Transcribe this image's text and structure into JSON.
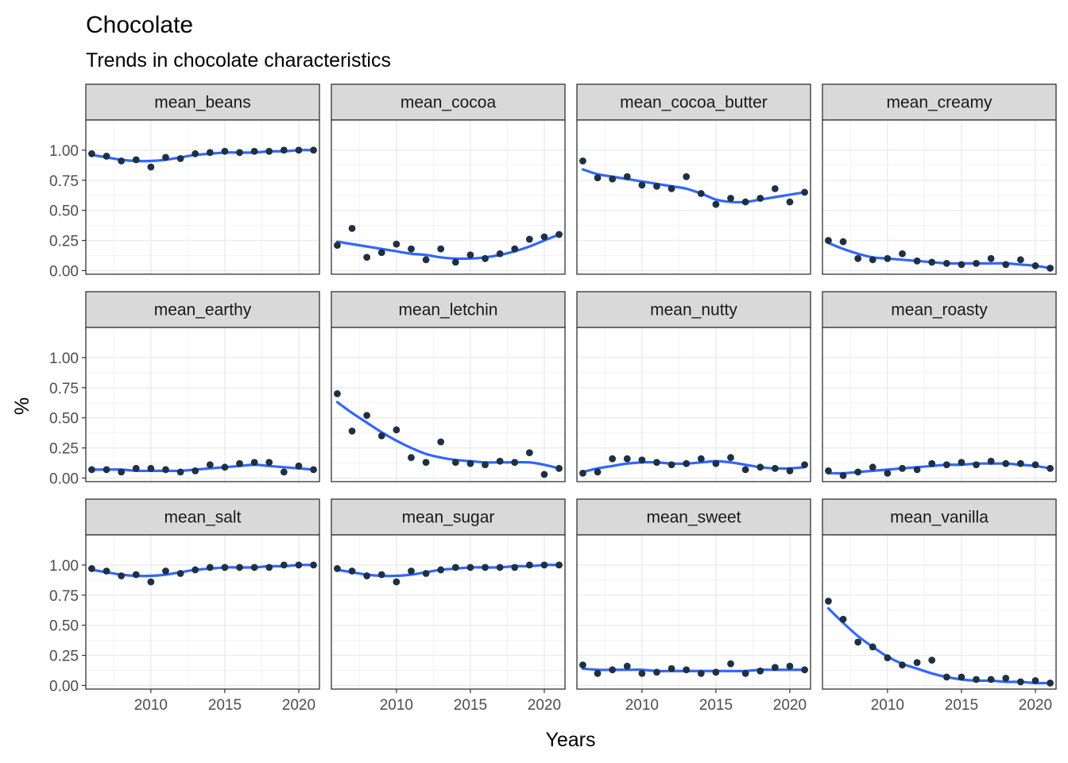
{
  "chart_data": {
    "type": "scatter",
    "title": "Chocolate",
    "subtitle": "Trends in chocolate characteristics",
    "xlabel": "Years",
    "ylabel": "%",
    "xlim": [
      2005.6,
      2021.4
    ],
    "ylim": [
      -0.03,
      1.25
    ],
    "x_ticks": [
      2010,
      2015,
      2020
    ],
    "y_ticks": [
      0.0,
      0.25,
      0.5,
      0.75,
      1.0
    ],
    "y_tick_labels": [
      "0.00",
      "0.25",
      "0.50",
      "0.75",
      "1.00"
    ],
    "grid": true,
    "theme": "bw",
    "colors": {
      "points": "#1f3044",
      "smooth": "#3366ff",
      "strip": "#d9d9d9",
      "grid": "#ebebeb",
      "panel_border": "#333333"
    },
    "x": [
      2006,
      2007,
      2008,
      2009,
      2010,
      2011,
      2012,
      2013,
      2014,
      2015,
      2016,
      2017,
      2018,
      2019,
      2020,
      2021
    ],
    "panels": [
      {
        "name": "mean_beans",
        "points": [
          0.97,
          0.95,
          0.91,
          0.92,
          0.86,
          0.94,
          0.93,
          0.97,
          0.98,
          0.99,
          0.98,
          0.99,
          0.99,
          1.0,
          1.0,
          1.0
        ],
        "smooth": [
          0.96,
          0.94,
          0.92,
          0.91,
          0.91,
          0.92,
          0.94,
          0.96,
          0.97,
          0.98,
          0.98,
          0.98,
          0.99,
          0.99,
          1.0,
          1.0
        ]
      },
      {
        "name": "mean_cocoa",
        "points": [
          0.21,
          0.35,
          0.11,
          0.15,
          0.22,
          0.18,
          0.09,
          0.18,
          0.07,
          0.13,
          0.1,
          0.14,
          0.18,
          0.26,
          0.28,
          0.3
        ],
        "smooth": [
          0.24,
          0.22,
          0.2,
          0.18,
          0.16,
          0.14,
          0.13,
          0.11,
          0.1,
          0.1,
          0.11,
          0.13,
          0.16,
          0.2,
          0.25,
          0.3
        ]
      },
      {
        "name": "mean_cocoa_butter",
        "points": [
          0.91,
          0.77,
          0.76,
          0.78,
          0.71,
          0.7,
          0.68,
          0.78,
          0.64,
          0.55,
          0.6,
          0.57,
          0.6,
          0.68,
          0.57,
          0.65
        ],
        "smooth": [
          0.84,
          0.8,
          0.78,
          0.76,
          0.74,
          0.72,
          0.7,
          0.68,
          0.64,
          0.59,
          0.57,
          0.57,
          0.59,
          0.61,
          0.63,
          0.65
        ]
      },
      {
        "name": "mean_creamy",
        "points": [
          0.25,
          0.24,
          0.1,
          0.09,
          0.1,
          0.14,
          0.08,
          0.07,
          0.06,
          0.05,
          0.06,
          0.1,
          0.05,
          0.09,
          0.04,
          0.02
        ],
        "smooth": [
          0.23,
          0.18,
          0.14,
          0.11,
          0.1,
          0.09,
          0.08,
          0.07,
          0.06,
          0.06,
          0.06,
          0.06,
          0.06,
          0.05,
          0.04,
          0.02
        ]
      },
      {
        "name": "mean_earthy",
        "points": [
          0.07,
          0.07,
          0.05,
          0.08,
          0.08,
          0.07,
          0.05,
          0.06,
          0.11,
          0.09,
          0.12,
          0.13,
          0.13,
          0.05,
          0.1,
          0.07
        ],
        "smooth": [
          0.07,
          0.07,
          0.07,
          0.06,
          0.06,
          0.06,
          0.06,
          0.07,
          0.08,
          0.09,
          0.1,
          0.11,
          0.1,
          0.09,
          0.08,
          0.07
        ]
      },
      {
        "name": "mean_letchin",
        "points": [
          0.7,
          0.39,
          0.52,
          0.35,
          0.4,
          0.17,
          0.13,
          0.3,
          0.13,
          0.12,
          0.11,
          0.14,
          0.13,
          0.21,
          0.03,
          0.08
        ],
        "smooth": [
          0.63,
          0.54,
          0.46,
          0.38,
          0.31,
          0.25,
          0.2,
          0.17,
          0.15,
          0.14,
          0.13,
          0.13,
          0.13,
          0.13,
          0.11,
          0.08
        ]
      },
      {
        "name": "mean_nutty",
        "points": [
          0.04,
          0.05,
          0.16,
          0.16,
          0.15,
          0.13,
          0.11,
          0.12,
          0.16,
          0.12,
          0.17,
          0.07,
          0.09,
          0.08,
          0.06,
          0.11
        ],
        "smooth": [
          0.05,
          0.08,
          0.1,
          0.12,
          0.13,
          0.13,
          0.12,
          0.12,
          0.13,
          0.14,
          0.13,
          0.11,
          0.09,
          0.08,
          0.08,
          0.09
        ]
      },
      {
        "name": "mean_roasty",
        "points": [
          0.06,
          0.02,
          0.05,
          0.09,
          0.04,
          0.08,
          0.07,
          0.12,
          0.11,
          0.13,
          0.11,
          0.14,
          0.12,
          0.12,
          0.11,
          0.08
        ],
        "smooth": [
          0.04,
          0.04,
          0.05,
          0.06,
          0.07,
          0.08,
          0.09,
          0.1,
          0.11,
          0.11,
          0.12,
          0.12,
          0.12,
          0.11,
          0.1,
          0.08
        ]
      },
      {
        "name": "mean_salt",
        "points": [
          0.97,
          0.95,
          0.91,
          0.92,
          0.86,
          0.95,
          0.93,
          0.96,
          0.98,
          0.98,
          0.98,
          0.98,
          0.98,
          1.0,
          1.0,
          1.0
        ],
        "smooth": [
          0.96,
          0.94,
          0.92,
          0.91,
          0.91,
          0.92,
          0.94,
          0.96,
          0.97,
          0.98,
          0.98,
          0.98,
          0.99,
          0.99,
          1.0,
          1.0
        ]
      },
      {
        "name": "mean_sugar",
        "points": [
          0.97,
          0.95,
          0.91,
          0.92,
          0.86,
          0.95,
          0.93,
          0.96,
          0.98,
          0.98,
          0.98,
          0.98,
          0.98,
          1.0,
          1.0,
          1.0
        ],
        "smooth": [
          0.96,
          0.94,
          0.92,
          0.91,
          0.91,
          0.92,
          0.94,
          0.96,
          0.97,
          0.98,
          0.98,
          0.98,
          0.99,
          0.99,
          1.0,
          1.0
        ]
      },
      {
        "name": "mean_sweet",
        "points": [
          0.17,
          0.1,
          0.13,
          0.16,
          0.1,
          0.11,
          0.14,
          0.13,
          0.1,
          0.11,
          0.18,
          0.1,
          0.12,
          0.15,
          0.16,
          0.13
        ],
        "smooth": [
          0.14,
          0.13,
          0.13,
          0.13,
          0.13,
          0.12,
          0.12,
          0.12,
          0.12,
          0.12,
          0.12,
          0.12,
          0.13,
          0.13,
          0.13,
          0.13
        ]
      },
      {
        "name": "mean_vanilla",
        "points": [
          0.7,
          0.55,
          0.36,
          0.32,
          0.23,
          0.17,
          0.19,
          0.21,
          0.07,
          0.07,
          0.05,
          0.05,
          0.06,
          0.03,
          0.04,
          0.02
        ],
        "smooth": [
          0.64,
          0.52,
          0.41,
          0.32,
          0.24,
          0.18,
          0.14,
          0.1,
          0.07,
          0.05,
          0.04,
          0.04,
          0.03,
          0.03,
          0.02,
          0.02
        ]
      }
    ]
  }
}
